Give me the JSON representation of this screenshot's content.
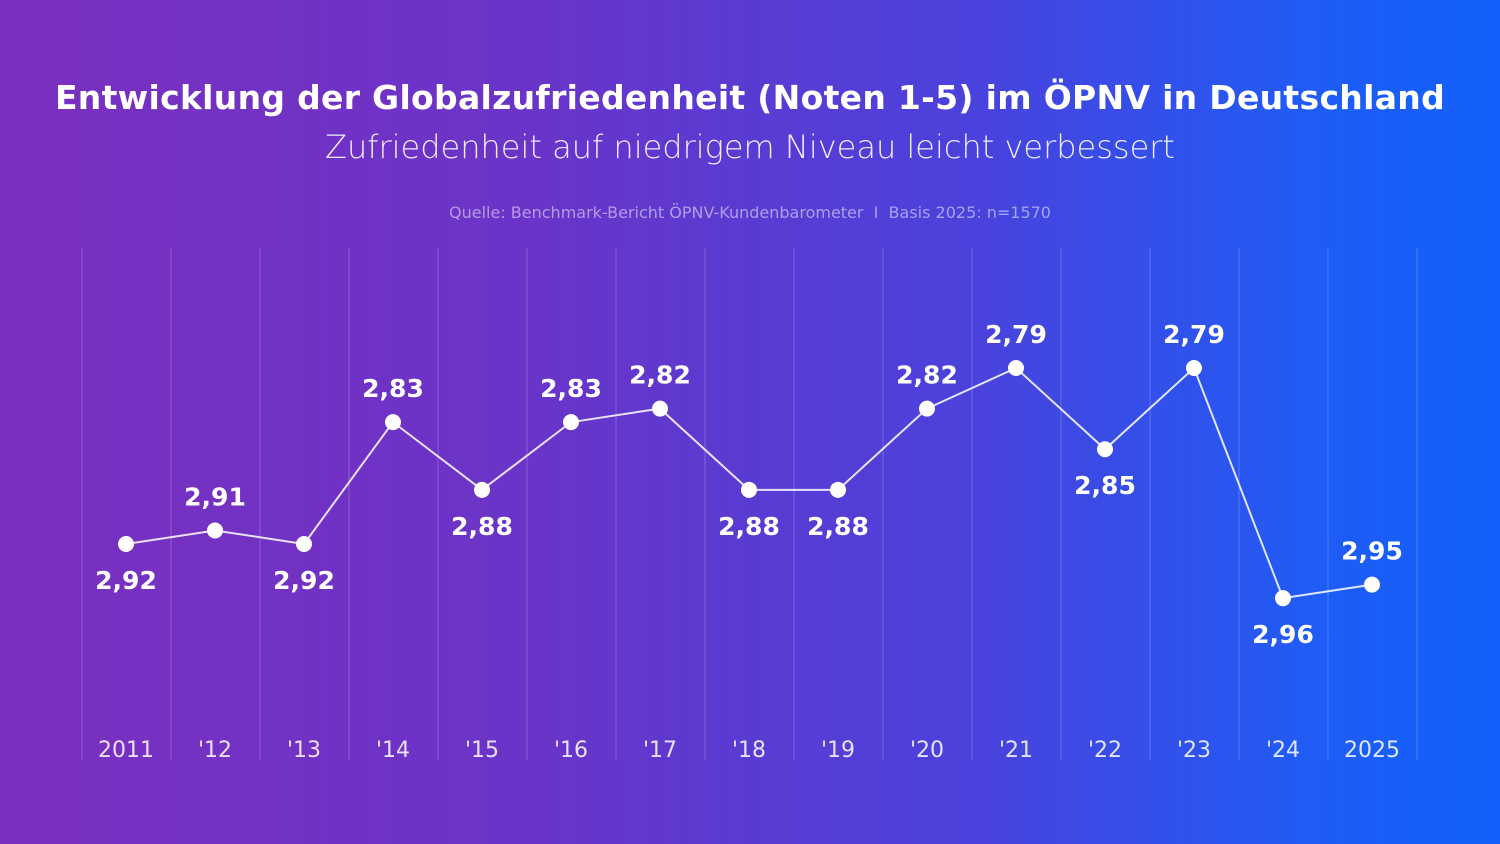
{
  "chart_data": {
    "type": "line",
    "title": "Entwicklung der Globalzufriedenheit (Noten 1-5) im ÖPNV in Deutschland",
    "subtitle": "Zufriedenheit auf niedrigem Niveau leicht verbessert",
    "source": "Quelle: Benchmark-Bericht ÖPNV-Kundenbarometer  I  Basis 2025: n=1570",
    "categories": [
      "2011",
      "'12",
      "'13",
      "'14",
      "'15",
      "'16",
      "'17",
      "'18",
      "'19",
      "'20",
      "'21",
      "'22",
      "'23",
      "'24",
      "2025"
    ],
    "values": [
      2.92,
      2.91,
      2.92,
      2.83,
      2.88,
      2.83,
      2.82,
      2.88,
      2.88,
      2.82,
      2.79,
      2.85,
      2.79,
      2.96,
      2.95
    ],
    "data_labels": [
      "2,92",
      "2,91",
      "2,92",
      "2,83",
      "2,88",
      "2,83",
      "2,82",
      "2,88",
      "2,88",
      "2,82",
      "2,79",
      "2,85",
      "2,79",
      "2,96",
      "2,95"
    ],
    "label_positions": [
      "below",
      "above",
      "below",
      "above",
      "below",
      "above",
      "above",
      "below",
      "below",
      "above",
      "above",
      "below",
      "above",
      "below",
      "above"
    ],
    "y_axis": "inverted (lower grade plotted higher)",
    "xlabel": "",
    "ylabel": "",
    "grid": "vertical lines",
    "colors": {
      "line": "#ffffff",
      "background_start": "#7b2fbf",
      "background_end": "#1260fb"
    }
  }
}
